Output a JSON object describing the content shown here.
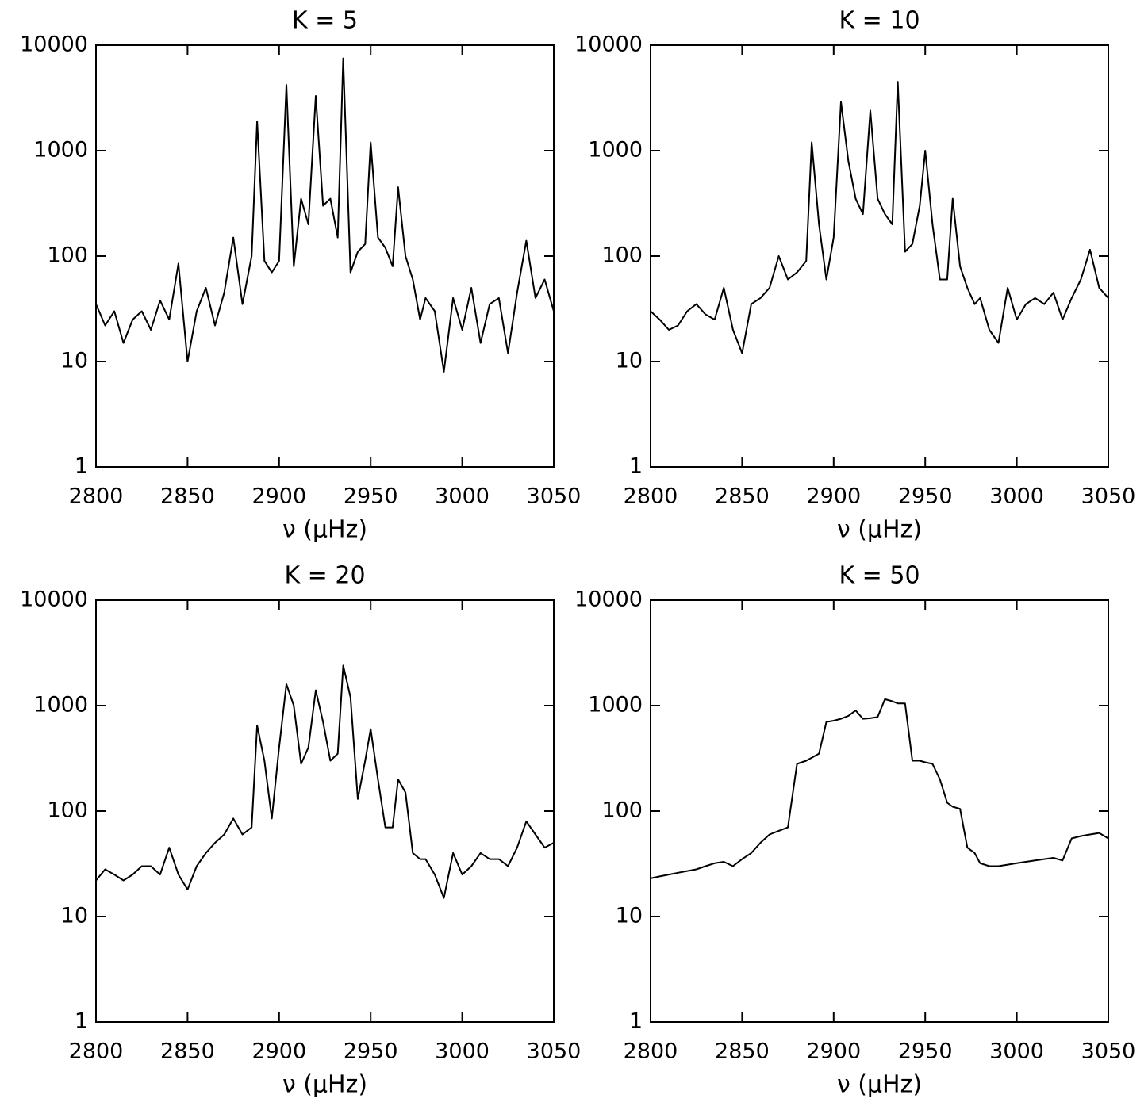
{
  "chart_data": [
    {
      "type": "line",
      "title": "K = 5",
      "xlabel": "ν   (μHz)",
      "log_y": true,
      "color": "#000000",
      "xlim": [
        2800,
        3050
      ],
      "ylim": [
        1,
        10000
      ],
      "xticks": [
        2800,
        2850,
        2900,
        2950,
        3000,
        3050
      ],
      "yticks": [
        1,
        10,
        100,
        1000,
        10000
      ],
      "x": [
        2800,
        2805,
        2810,
        2815,
        2820,
        2825,
        2830,
        2835,
        2840,
        2845,
        2850,
        2855,
        2860,
        2865,
        2870,
        2875,
        2880,
        2885,
        2888,
        2892,
        2896,
        2900,
        2904,
        2908,
        2912,
        2916,
        2920,
        2924,
        2928,
        2932,
        2935,
        2939,
        2943,
        2947,
        2950,
        2954,
        2958,
        2962,
        2965,
        2969,
        2973,
        2977,
        2980,
        2985,
        2990,
        2995,
        3000,
        3005,
        3010,
        3015,
        3020,
        3025,
        3030,
        3035,
        3040,
        3045,
        3050
      ],
      "values": [
        35,
        22,
        30,
        15,
        25,
        30,
        20,
        38,
        25,
        85,
        10,
        30,
        50,
        22,
        45,
        150,
        35,
        100,
        1900,
        90,
        70,
        90,
        4200,
        80,
        350,
        200,
        3300,
        300,
        350,
        150,
        7500,
        70,
        110,
        130,
        1200,
        150,
        120,
        80,
        450,
        100,
        60,
        25,
        40,
        30,
        8,
        40,
        20,
        50,
        15,
        35,
        40,
        12,
        45,
        140,
        40,
        60,
        30
      ]
    },
    {
      "type": "line",
      "title": "K = 10",
      "xlabel": "ν   (μHz)",
      "log_y": true,
      "color": "#000000",
      "xlim": [
        2800,
        3050
      ],
      "ylim": [
        1,
        10000
      ],
      "xticks": [
        2800,
        2850,
        2900,
        2950,
        3000,
        3050
      ],
      "yticks": [
        1,
        10,
        100,
        1000,
        10000
      ],
      "x": [
        2800,
        2805,
        2810,
        2815,
        2820,
        2825,
        2830,
        2835,
        2840,
        2845,
        2850,
        2855,
        2860,
        2865,
        2870,
        2875,
        2880,
        2885,
        2888,
        2892,
        2896,
        2900,
        2904,
        2908,
        2912,
        2916,
        2920,
        2924,
        2928,
        2932,
        2935,
        2939,
        2943,
        2947,
        2950,
        2954,
        2958,
        2962,
        2965,
        2969,
        2973,
        2977,
        2980,
        2985,
        2990,
        2995,
        3000,
        3005,
        3010,
        3015,
        3020,
        3025,
        3030,
        3035,
        3040,
        3045,
        3050
      ],
      "values": [
        30,
        25,
        20,
        22,
        30,
        35,
        28,
        25,
        50,
        20,
        12,
        35,
        40,
        50,
        100,
        60,
        70,
        90,
        1200,
        200,
        60,
        150,
        2900,
        800,
        350,
        250,
        2400,
        350,
        250,
        200,
        4500,
        110,
        130,
        300,
        1000,
        200,
        60,
        60,
        350,
        80,
        50,
        35,
        40,
        20,
        15,
        50,
        25,
        35,
        40,
        35,
        45,
        25,
        40,
        60,
        115,
        50,
        40
      ]
    },
    {
      "type": "line",
      "title": "K = 20",
      "xlabel": "ν   (μHz)",
      "log_y": true,
      "color": "#000000",
      "xlim": [
        2800,
        3050
      ],
      "ylim": [
        1,
        10000
      ],
      "xticks": [
        2800,
        2850,
        2900,
        2950,
        3000,
        3050
      ],
      "yticks": [
        1,
        10,
        100,
        1000,
        10000
      ],
      "x": [
        2800,
        2805,
        2810,
        2815,
        2820,
        2825,
        2830,
        2835,
        2840,
        2845,
        2850,
        2855,
        2860,
        2865,
        2870,
        2875,
        2880,
        2885,
        2888,
        2892,
        2896,
        2900,
        2904,
        2908,
        2912,
        2916,
        2920,
        2924,
        2928,
        2932,
        2935,
        2939,
        2943,
        2947,
        2950,
        2954,
        2958,
        2962,
        2965,
        2969,
        2973,
        2977,
        2980,
        2985,
        2990,
        2995,
        3000,
        3005,
        3010,
        3015,
        3020,
        3025,
        3030,
        3035,
        3040,
        3045,
        3050
      ],
      "values": [
        22,
        28,
        25,
        22,
        25,
        30,
        30,
        25,
        45,
        25,
        18,
        30,
        40,
        50,
        60,
        85,
        60,
        70,
        650,
        300,
        85,
        400,
        1600,
        1000,
        280,
        400,
        1400,
        700,
        300,
        350,
        2400,
        1200,
        130,
        300,
        600,
        200,
        70,
        70,
        200,
        150,
        40,
        35,
        35,
        25,
        15,
        40,
        25,
        30,
        40,
        35,
        35,
        30,
        45,
        80,
        60,
        45,
        50
      ]
    },
    {
      "type": "line",
      "title": "K = 50",
      "xlabel": "ν   (μHz)",
      "log_y": true,
      "color": "#000000",
      "xlim": [
        2800,
        3050
      ],
      "ylim": [
        1,
        10000
      ],
      "xticks": [
        2800,
        2850,
        2900,
        2950,
        3000,
        3050
      ],
      "yticks": [
        1,
        10,
        100,
        1000,
        10000
      ],
      "x": [
        2800,
        2805,
        2810,
        2815,
        2820,
        2825,
        2830,
        2835,
        2840,
        2845,
        2850,
        2855,
        2860,
        2865,
        2870,
        2875,
        2880,
        2885,
        2888,
        2892,
        2896,
        2900,
        2904,
        2908,
        2912,
        2916,
        2920,
        2924,
        2928,
        2932,
        2935,
        2939,
        2943,
        2947,
        2950,
        2954,
        2958,
        2962,
        2965,
        2969,
        2973,
        2977,
        2980,
        2985,
        2990,
        2995,
        3000,
        3005,
        3010,
        3015,
        3020,
        3025,
        3030,
        3035,
        3040,
        3045,
        3050
      ],
      "values": [
        23,
        24,
        25,
        26,
        27,
        28,
        30,
        32,
        33,
        30,
        35,
        40,
        50,
        60,
        65,
        70,
        280,
        300,
        320,
        350,
        700,
        720,
        750,
        800,
        900,
        750,
        760,
        780,
        1150,
        1100,
        1050,
        1050,
        300,
        300,
        290,
        280,
        200,
        120,
        110,
        105,
        45,
        40,
        32,
        30,
        30,
        31,
        32,
        33,
        34,
        35,
        36,
        34,
        55,
        58,
        60,
        62,
        55
      ]
    }
  ]
}
